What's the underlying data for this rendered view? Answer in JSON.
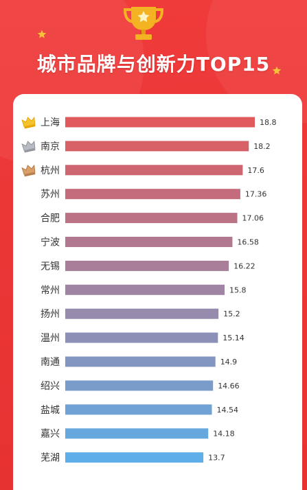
{
  "header": {
    "title": "城市品牌与创新力TOP15"
  },
  "colors": {
    "background": "#ec3737",
    "card": "#ffffff",
    "gold": "#f4b322",
    "bar_start": "#e05a5d",
    "bar_end": "#5eaee9"
  },
  "icons": {
    "trophy": "trophy-icon",
    "star": "star-icon",
    "crowns": [
      "crown-gold-icon",
      "crown-silver-icon",
      "crown-bronze-icon"
    ]
  },
  "chart_data": {
    "type": "bar",
    "orientation": "horizontal",
    "title": "城市品牌与创新力TOP15",
    "categories": [
      "上海",
      "南京",
      "杭州",
      "苏州",
      "合肥",
      "宁波",
      "无锡",
      "常州",
      "扬州",
      "温州",
      "南通",
      "绍兴",
      "盐城",
      "嘉兴",
      "芜湖"
    ],
    "values": [
      18.8,
      18.2,
      17.6,
      17.36,
      17.06,
      16.58,
      16.22,
      15.8,
      15.2,
      15.14,
      14.9,
      14.66,
      14.54,
      14.18,
      13.7
    ],
    "value_labels": [
      "18.8",
      "18.2",
      "17.6",
      "17.36",
      "17.06",
      "16.58",
      "16.22",
      "15.8",
      "15.2",
      "15.14",
      "14.9",
      "14.66",
      "14.54",
      "14.18",
      "13.7"
    ],
    "grid": false,
    "legend": "none",
    "data_labels": "end"
  }
}
